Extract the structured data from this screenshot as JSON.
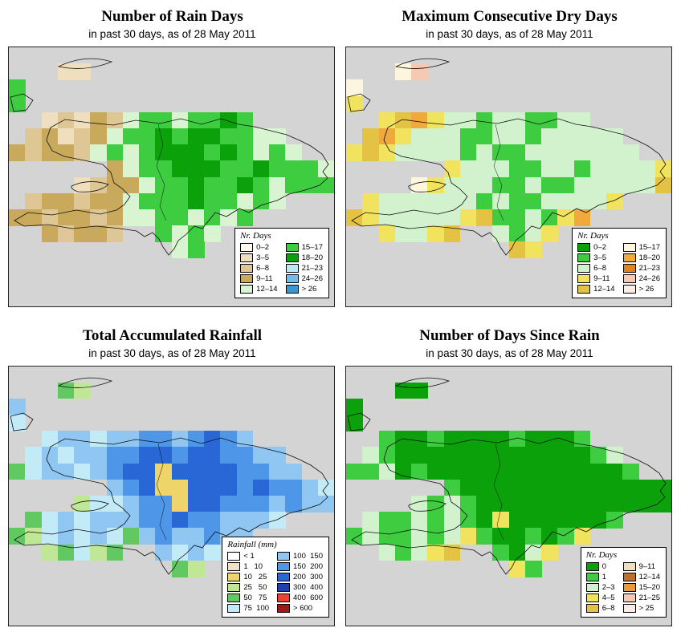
{
  "map_style": {
    "sea_color": "#d4d4d4",
    "coastline_color": "#101010",
    "frame_color": "#222222",
    "page_background": "#ffffff"
  },
  "panels": [
    {
      "id": "rain-days",
      "title": "Number of Rain Days",
      "subtitle": "in past 30 days, as of  28 May 2011",
      "palette": [
        "#FEF9EC",
        "#EFDFBF",
        "#DFC795",
        "#C9A95B",
        "#D8F4D0",
        "#3ECC41",
        "#0AA10A",
        "#BFE8F5",
        "#6FBDE8",
        "#3A96D2"
      ],
      "grid": [
        "....................",
        "...11...............",
        "5...................",
        "5...................",
        "..1213245545565.....",
        ".2312345565665544...",
        "323324545666565454..",
        "......34556665565554",
        "....1233455655654555",
        ".2332334555655454...",
        "332332344554545.....",
        "..32332..5454.......",
        "..........45........",
        "....................",
        "....................",
        "...................."
      ],
      "legend": {
        "title": "Nr. Days",
        "columns": [
          [
            {
              "label": "0–2",
              "color_index": 0
            },
            {
              "label": "3–5",
              "color_index": 1
            },
            {
              "label": "6–8",
              "color_index": 2
            },
            {
              "label": "9–11",
              "color_index": 3
            },
            {
              "label": "12–14",
              "color_index": 4
            }
          ],
          [
            {
              "label": "15–17",
              "color_index": 5
            },
            {
              "label": "18–20",
              "color_index": 6
            },
            {
              "label": "21–23",
              "color_index": 7
            },
            {
              "label": "24–26",
              "color_index": 8
            },
            {
              "label": "> 26",
              "color_index": 9
            }
          ]
        ]
      }
    },
    {
      "id": "dry-days",
      "title": "Maximum Consecutive Dry Days",
      "subtitle": "in past 30 days, as of  28 May 2011",
      "palette": [
        "#0AA10A",
        "#3ECC41",
        "#D2F2CE",
        "#F2E35F",
        "#E3C244",
        "#FDF6DE",
        "#F2A93B",
        "#DE8418",
        "#F6C9B4",
        "#FBEDE6"
      ],
      "grid": [
        "....................",
        "...58...............",
        "5...................",
        "3...................",
        "..3463221221122.....",
        ".4632221122122222...",
        "343222212112222222..",
        "......32221122122223",
        "....5322211211222224",
        ".3222222121122223...",
        "432222234112136.....",
        "..32234..2123.......",
        "..........43........",
        "....................",
        "....................",
        "...................."
      ],
      "legend": {
        "title": "Nr. Days",
        "columns": [
          [
            {
              "label": "0–2",
              "color_index": 0
            },
            {
              "label": "3–5",
              "color_index": 1
            },
            {
              "label": "6–8",
              "color_index": 2
            },
            {
              "label": "9–11",
              "color_index": 3
            },
            {
              "label": "12–14",
              "color_index": 4
            }
          ],
          [
            {
              "label": "15–17",
              "color_index": 5
            },
            {
              "label": "18–20",
              "color_index": 6
            },
            {
              "label": "21–23",
              "color_index": 7
            },
            {
              "label": "24–26",
              "color_index": 8
            },
            {
              "label": "> 26",
              "color_index": 9
            }
          ]
        ]
      }
    },
    {
      "id": "accumulated-rainfall",
      "title": "Total Accumulated Rainfall",
      "subtitle": "in past 30 days, as of  28 May 2011",
      "palette": [
        "#FFFFFF",
        "#F2E0C8",
        "#EFD469",
        "#C0E795",
        "#62C862",
        "#C2EAF7",
        "#8FC6F2",
        "#4E97E8",
        "#2A67D6",
        "#1F3FB0",
        "#E8442F",
        "#A01818"
      ],
      "grid": [
        "....................",
        "...43...............",
        "6...................",
        "5...................",
        "..5665667767876.....",
        ".5656677887887766...",
        "456656788288887766..",
        "......67822888787765",
        "....3556772887776766",
        ".4565666778776665...",
        "435656546766766.....",
        "..34534..6565.......",
        "..........43........",
        "....................",
        "....................",
        "...................."
      ],
      "legend": {
        "title": "Rainfall (mm)",
        "columns": [
          [
            {
              "label": "< 1",
              "color_index": 0
            },
            {
              "label": "1   10",
              "color_index": 1
            },
            {
              "label": "10   25",
              "color_index": 2
            },
            {
              "label": "25   50",
              "color_index": 3
            },
            {
              "label": "50   75",
              "color_index": 4
            },
            {
              "label": "75  100",
              "color_index": 5
            }
          ],
          [
            {
              "label": "100  150",
              "color_index": 6
            },
            {
              "label": "150  200",
              "color_index": 7
            },
            {
              "label": "200  300",
              "color_index": 8
            },
            {
              "label": "300  400",
              "color_index": 9
            },
            {
              "label": "400  600",
              "color_index": 10
            },
            {
              "label": "> 600",
              "color_index": 11
            }
          ]
        ]
      }
    },
    {
      "id": "days-since-rain",
      "title": "Number of Days Since Rain",
      "subtitle": "in past 30 days, as of  28 May 2011",
      "palette": [
        "#0AA10A",
        "#3ECC41",
        "#D2F2CE",
        "#F2E35F",
        "#E3C244",
        "#EFDFBF",
        "#BE6F2E",
        "#E89A3C",
        "#F6C9B4",
        "#FBEDE6"
      ],
      "grid": [
        "....................",
        "...00...............",
        "0...................",
        "0...................",
        "..1001000010001.....",
        ".2100000000000012...",
        "112010000000000001..",
        "......10000000000000",
        "....2121000000000000",
        ".2112121030000001...",
        "121121231001013.....",
        "..21234..1023.......",
        "..........31........",
        "....................",
        "....................",
        "...................."
      ],
      "legend": {
        "title": "Nr. Days",
        "columns": [
          [
            {
              "label": "0",
              "color_index": 0
            },
            {
              "label": "1",
              "color_index": 1
            },
            {
              "label": "2–3",
              "color_index": 2
            },
            {
              "label": "4–5",
              "color_index": 3
            },
            {
              "label": "6–8",
              "color_index": 4
            }
          ],
          [
            {
              "label": "9–11",
              "color_index": 5
            },
            {
              "label": "12–14",
              "color_index": 6
            },
            {
              "label": "15–20",
              "color_index": 7
            },
            {
              "label": "21–25",
              "color_index": 8
            },
            {
              "label": "> 25",
              "color_index": 9
            }
          ]
        ]
      }
    }
  ]
}
